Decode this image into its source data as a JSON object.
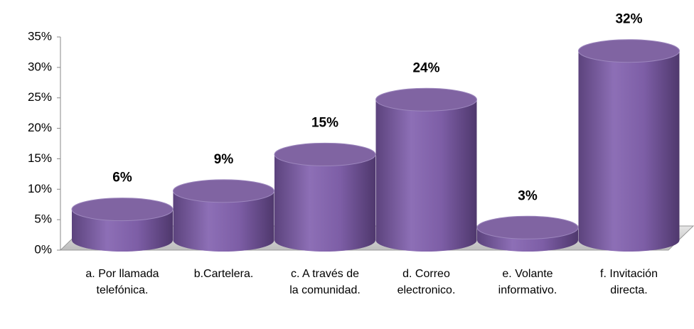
{
  "chart_data": {
    "type": "bar",
    "categories": [
      "a. Por llamada telefónica.",
      "b.Cartelera.",
      "c. A través de la comunidad.",
      "d. Correo electronico.",
      "e. Volante informativo.",
      "f. Invitación directa."
    ],
    "values": [
      6,
      9,
      15,
      24,
      3,
      32
    ],
    "value_labels": [
      "6%",
      "9%",
      "15%",
      "24%",
      "3%",
      "32%"
    ],
    "color": "#8064a2",
    "ylim": [
      0,
      35
    ],
    "yticks": [
      {
        "value": 0,
        "label": "0%"
      },
      {
        "value": 5,
        "label": "5%"
      },
      {
        "value": 10,
        "label": "10%"
      },
      {
        "value": 15,
        "label": "15%"
      },
      {
        "value": 20,
        "label": "20%"
      },
      {
        "value": 25,
        "label": "25%"
      },
      {
        "value": 30,
        "label": "30%"
      },
      {
        "value": 35,
        "label": "35%"
      }
    ],
    "grid": false
  }
}
